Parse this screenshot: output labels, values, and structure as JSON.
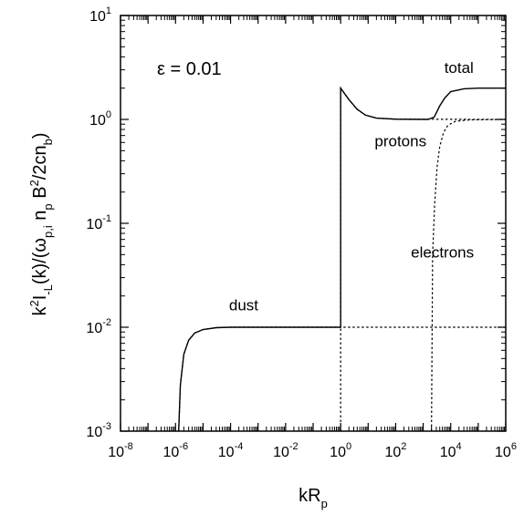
{
  "chart_data": {
    "type": "line",
    "x_scale": "log",
    "y_scale": "log",
    "xlim": [
      1e-08,
      1000000.0
    ],
    "ylim": [
      0.001,
      10
    ],
    "x_ticks": [
      {
        "base": "10",
        "exp": "-8"
      },
      {
        "base": "10",
        "exp": "-6"
      },
      {
        "base": "10",
        "exp": "-4"
      },
      {
        "base": "10",
        "exp": "-2"
      },
      {
        "base": "10",
        "exp": "0"
      },
      {
        "base": "10",
        "exp": "2"
      },
      {
        "base": "10",
        "exp": "4"
      },
      {
        "base": "10",
        "exp": "6"
      }
    ],
    "y_ticks": [
      {
        "base": "10",
        "exp": "-3"
      },
      {
        "base": "10",
        "exp": "-2"
      },
      {
        "base": "10",
        "exp": "-1"
      },
      {
        "base": "10",
        "exp": "0"
      },
      {
        "base": "10",
        "exp": "1"
      }
    ],
    "xlabel": {
      "main": "kR",
      "sub": "p"
    },
    "ylabel": {
      "parts": [
        {
          "t": "k",
          "s": "n"
        },
        {
          "t": "2",
          "s": "sup"
        },
        {
          "t": "I",
          "s": "n"
        },
        {
          "t": "-L",
          "s": "sub"
        },
        {
          "t": "(k)/(ω",
          "s": "n"
        },
        {
          "t": "p,i",
          "s": "sub"
        },
        {
          "t": " n",
          "s": "n"
        },
        {
          "t": "p",
          "s": "sub"
        },
        {
          "t": " B",
          "s": "n"
        },
        {
          "t": "2",
          "s": "sup"
        },
        {
          "t": "/2cn",
          "s": "n"
        },
        {
          "t": "b",
          "s": "sub"
        },
        {
          "t": ")",
          "s": "n"
        }
      ]
    },
    "parameter_label": "ε = 0.01",
    "series": [
      {
        "name": "total",
        "style": "solid",
        "points": [
          [
            1.3e-06,
            0.001
          ],
          [
            1.5e-06,
            0.0028
          ],
          [
            2e-06,
            0.0055
          ],
          [
            3e-06,
            0.0075
          ],
          [
            5e-06,
            0.0088
          ],
          [
            1e-05,
            0.0095
          ],
          [
            3e-05,
            0.0099
          ],
          [
            0.0001,
            0.01
          ],
          [
            0.01,
            0.01
          ],
          [
            1,
            0.01
          ],
          [
            1,
            2.0
          ],
          [
            2,
            1.55
          ],
          [
            4,
            1.25
          ],
          [
            8,
            1.1
          ],
          [
            20,
            1.03
          ],
          [
            100,
            1.005
          ],
          [
            1500,
            1.0
          ],
          [
            2500,
            1.05
          ],
          [
            4000,
            1.35
          ],
          [
            6000,
            1.6
          ],
          [
            10000,
            1.85
          ],
          [
            30000,
            1.97
          ],
          [
            100000,
            2.0
          ],
          [
            1000000,
            2.0
          ]
        ]
      },
      {
        "name": "dust",
        "style": "dotted",
        "points": [
          [
            1.3e-06,
            0.001
          ],
          [
            1.5e-06,
            0.0028
          ],
          [
            2e-06,
            0.0055
          ],
          [
            3e-06,
            0.0075
          ],
          [
            5e-06,
            0.0088
          ],
          [
            1e-05,
            0.0095
          ],
          [
            3e-05,
            0.0099
          ],
          [
            0.0001,
            0.01
          ],
          [
            1000000,
            0.01
          ]
        ]
      },
      {
        "name": "protons",
        "style": "dotted",
        "points": [
          [
            1,
            0.001
          ],
          [
            1,
            2.0
          ],
          [
            2,
            1.55
          ],
          [
            4,
            1.25
          ],
          [
            8,
            1.1
          ],
          [
            20,
            1.03
          ],
          [
            100,
            1.005
          ],
          [
            1000000,
            1.0
          ]
        ]
      },
      {
        "name": "electrons",
        "style": "dotted",
        "points": [
          [
            2000,
            0.001
          ],
          [
            2200,
            0.05
          ],
          [
            2600,
            0.15
          ],
          [
            3200,
            0.35
          ],
          [
            4000,
            0.55
          ],
          [
            5500,
            0.75
          ],
          [
            8000,
            0.88
          ],
          [
            15000,
            0.96
          ],
          [
            50000,
            0.99
          ],
          [
            1000000,
            1.0
          ]
        ]
      }
    ],
    "annotations": [
      {
        "text": "total",
        "x": 20000,
        "y": 2.8
      },
      {
        "text": "protons",
        "x": 150,
        "y": 0.55
      },
      {
        "text": "electrons",
        "x": 5000,
        "y": 0.047
      },
      {
        "text": "dust",
        "x": 0.0003,
        "y": 0.0145
      }
    ]
  }
}
